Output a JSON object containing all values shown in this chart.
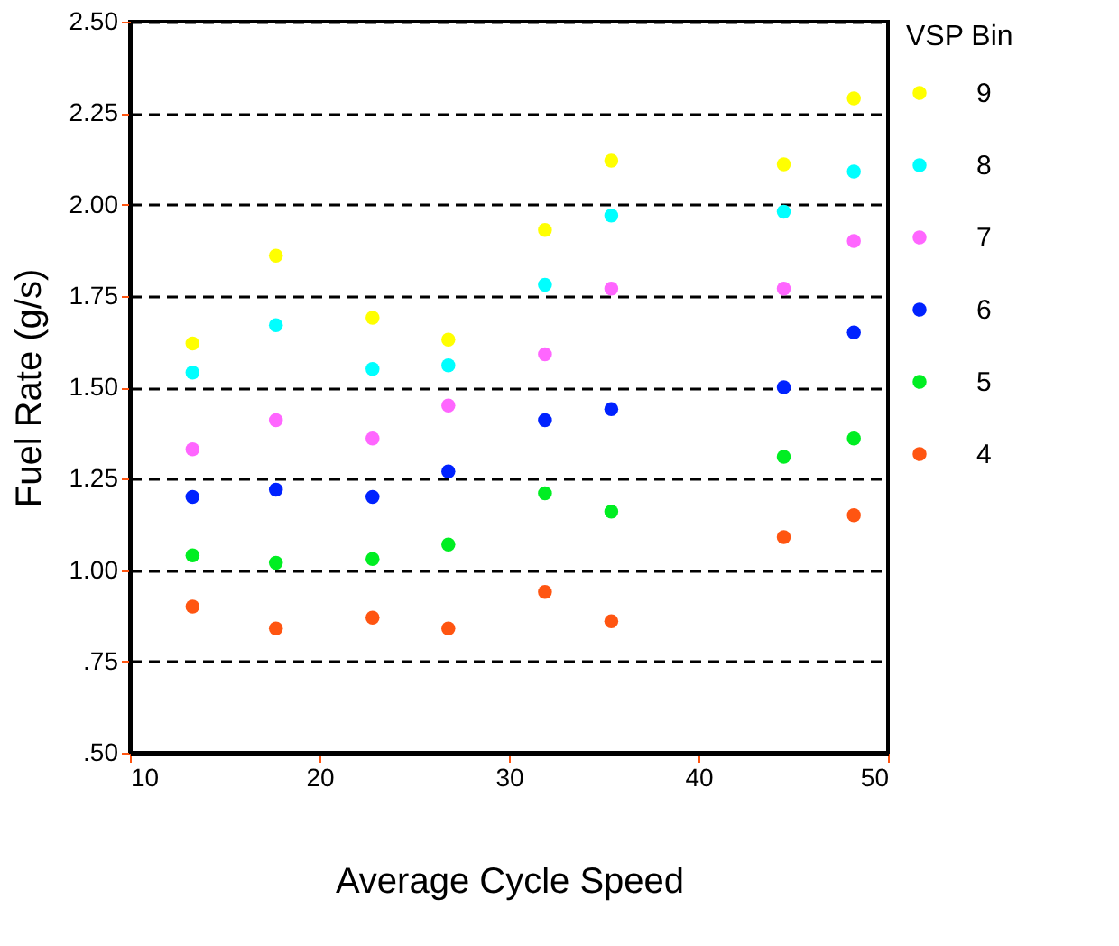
{
  "chart_data": {
    "type": "scatter",
    "xlabel": "Average Cycle Speed",
    "ylabel": "Fuel Rate (g/s)",
    "legend_title": "VSP Bin",
    "x": [
      13.3,
      17.7,
      22.8,
      26.8,
      31.9,
      35.4,
      44.5,
      48.2
    ],
    "series": [
      {
        "name": "9",
        "color": "#ffff00",
        "values": [
          1.62,
          1.86,
          1.69,
          1.63,
          1.93,
          2.12,
          2.11,
          2.29
        ]
      },
      {
        "name": "8",
        "color": "#00ffff",
        "values": [
          1.54,
          1.67,
          1.55,
          1.56,
          1.78,
          1.97,
          1.98,
          2.09
        ]
      },
      {
        "name": "7",
        "color": "#ff66ff",
        "values": [
          1.33,
          1.41,
          1.36,
          1.45,
          1.59,
          1.77,
          1.77,
          1.9
        ]
      },
      {
        "name": "6",
        "color": "#0022ff",
        "values": [
          1.2,
          1.22,
          1.2,
          1.27,
          1.41,
          1.44,
          1.5,
          1.65
        ]
      },
      {
        "name": "5",
        "color": "#00ee22",
        "values": [
          1.04,
          1.02,
          1.03,
          1.07,
          1.21,
          1.16,
          1.31,
          1.36
        ]
      },
      {
        "name": "4",
        "color": "#ff5511",
        "values": [
          0.9,
          0.84,
          0.87,
          0.84,
          0.94,
          0.86,
          1.09,
          1.15
        ]
      }
    ],
    "xlim": [
      10,
      50
    ],
    "xticks": [
      10,
      20,
      30,
      40,
      50
    ],
    "ylim": [
      0.5,
      2.5
    ],
    "yticks": [
      {
        "value": 0.5,
        "label": ".50"
      },
      {
        "value": 0.75,
        "label": ".75"
      },
      {
        "value": 1.0,
        "label": "1.00"
      },
      {
        "value": 1.25,
        "label": "1.25"
      },
      {
        "value": 1.5,
        "label": "1.50"
      },
      {
        "value": 1.75,
        "label": "1.75"
      },
      {
        "value": 2.0,
        "label": "2.00"
      },
      {
        "value": 2.25,
        "label": "2.25"
      },
      {
        "value": 2.5,
        "label": "2.50"
      }
    ],
    "grid": "y",
    "legend": "right",
    "marker": "circle"
  }
}
